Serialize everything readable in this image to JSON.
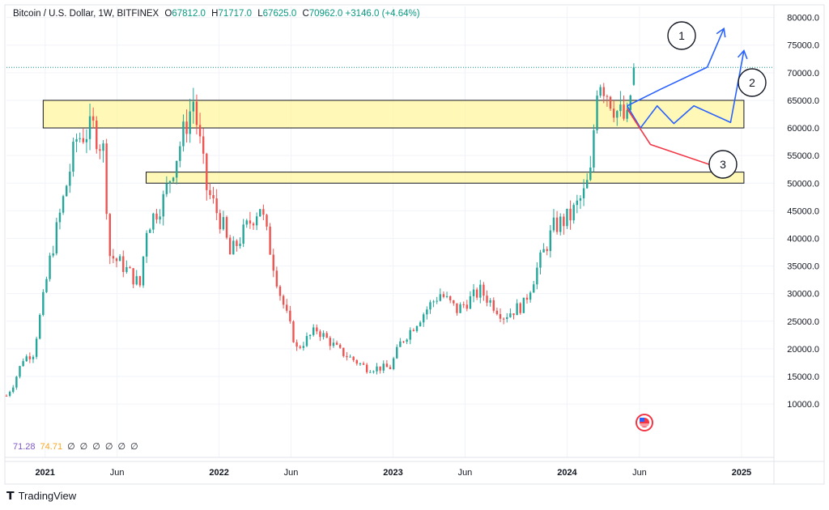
{
  "header": {
    "symbol": "Bitcoin / U.S. Dollar, 1W, BITFINEX",
    "open_label": "O",
    "open": "67812.0",
    "high_label": "H",
    "high": "71717.0",
    "low_label": "L",
    "low": "67625.0",
    "close_label": "C",
    "close": "70962.0",
    "change": "+3146.0 (+4.64%)"
  },
  "indicators": {
    "values": [
      "71.28",
      "74.71",
      "∅",
      "∅",
      "∅",
      "∅",
      "∅",
      "∅"
    ],
    "colors": [
      "#7e57c2",
      "#f9a825",
      "#131722",
      "#131722",
      "#131722",
      "#131722",
      "#131722",
      "#131722"
    ]
  },
  "branding": {
    "name": "TradingView",
    "logo_icon": "tradingview-logo-icon"
  },
  "colors": {
    "up": "#26a69a",
    "down": "#ef5350",
    "zone_fill": "#fff59d",
    "projection_blue": "#2962ff",
    "projection_red": "#f23645",
    "grid": "#f0f3fa"
  },
  "chart_data": {
    "type": "candlestick",
    "title": "Bitcoin / U.S. Dollar, 1W, BITFINEX",
    "xlabel": "",
    "ylabel": "",
    "x_range": [
      "2020-10-12",
      "2025-03-10"
    ],
    "ylim": [
      4000,
      82000
    ],
    "y_scale": "linear",
    "y_ticks": [
      "10000.0",
      "15000.0",
      "20000.0",
      "25000.0",
      "30000.0",
      "35000.0",
      "40000.0",
      "45000.0",
      "50000.0",
      "55000.0",
      "60000.0",
      "65000.0",
      "70000.0",
      "75000.0",
      "80000.0"
    ],
    "x_ticks": [
      {
        "date": "2021-01-01",
        "label": "2021",
        "major": true
      },
      {
        "date": "2021-06-01",
        "label": "Jun",
        "major": false
      },
      {
        "date": "2022-01-01",
        "label": "2022",
        "major": true
      },
      {
        "date": "2022-06-01",
        "label": "Jun",
        "major": false
      },
      {
        "date": "2023-01-01",
        "label": "2023",
        "major": true
      },
      {
        "date": "2023-06-01",
        "label": "Jun",
        "major": false
      },
      {
        "date": "2024-01-01",
        "label": "2024",
        "major": true
      },
      {
        "date": "2024-06-01",
        "label": "Jun",
        "major": false
      },
      {
        "date": "2025-01-01",
        "label": "2025",
        "major": true
      }
    ],
    "grid": true,
    "price_line": 70962,
    "series": [
      {
        "close_path": [
          [
            "2020-10-12",
            11500
          ],
          [
            "2020-10-26",
            13500
          ],
          [
            "2020-11-16",
            18200
          ],
          [
            "2020-12-07",
            19200
          ],
          [
            "2020-12-28",
            29000
          ],
          [
            "2021-01-11",
            36000
          ],
          [
            "2021-02-08",
            47000
          ],
          [
            "2021-03-08",
            58000
          ],
          [
            "2021-04-12",
            60000
          ],
          [
            "2021-05-03",
            56000
          ],
          [
            "2021-05-17",
            37000
          ],
          [
            "2021-06-14",
            35000
          ],
          [
            "2021-07-19",
            31500
          ],
          [
            "2021-08-02",
            42000
          ],
          [
            "2021-09-06",
            47000
          ],
          [
            "2021-10-04",
            55000
          ],
          [
            "2021-11-08",
            65000
          ],
          [
            "2021-12-06",
            49000
          ],
          [
            "2022-01-10",
            42000
          ],
          [
            "2022-01-24",
            37000
          ],
          [
            "2022-03-28",
            46000
          ],
          [
            "2022-05-09",
            30000
          ],
          [
            "2022-06-13",
            20000
          ],
          [
            "2022-07-25",
            23500
          ],
          [
            "2022-09-12",
            19500
          ],
          [
            "2022-11-07",
            16500
          ],
          [
            "2022-12-26",
            16600
          ],
          [
            "2023-01-16",
            21000
          ],
          [
            "2023-03-20",
            28000
          ],
          [
            "2023-04-10",
            30000
          ],
          [
            "2023-05-15",
            27000
          ],
          [
            "2023-07-03",
            30500
          ],
          [
            "2023-08-21",
            26000
          ],
          [
            "2023-10-02",
            28000
          ],
          [
            "2023-10-30",
            34500
          ],
          [
            "2023-12-04",
            42000
          ],
          [
            "2024-01-08",
            44000
          ],
          [
            "2024-02-05",
            48000
          ],
          [
            "2024-02-19",
            51500
          ],
          [
            "2024-03-04",
            68000
          ],
          [
            "2024-03-11",
            69000
          ],
          [
            "2024-04-15",
            63000
          ],
          [
            "2024-05-06",
            61000
          ],
          [
            "2024-05-20",
            70962
          ]
        ]
      }
    ],
    "zones": [
      {
        "from": "2020-12-28",
        "to": "2025-01-06",
        "low": 60000,
        "high": 65000
      },
      {
        "from": "2021-08-01",
        "to": "2025-01-06",
        "low": 50000,
        "high": 52000
      }
    ],
    "scenarios": [
      {
        "label": "1",
        "color": "#2962ff",
        "points": [
          [
            "2024-05-06",
            64000
          ],
          [
            "2024-07-15",
            67000
          ],
          [
            "2024-10-21",
            71000
          ],
          [
            "2024-11-25",
            78000
          ]
        ]
      },
      {
        "label": "2",
        "color": "#2962ff",
        "points": [
          [
            "2024-05-06",
            64000
          ],
          [
            "2024-06-03",
            60000
          ],
          [
            "2024-07-08",
            64000
          ],
          [
            "2024-08-12",
            60800
          ],
          [
            "2024-09-23",
            64000
          ],
          [
            "2024-12-09",
            61000
          ],
          [
            "2025-01-06",
            74000
          ]
        ]
      },
      {
        "label": "3",
        "color": "#f23645",
        "points": [
          [
            "2024-05-06",
            63500
          ],
          [
            "2024-06-24",
            57000
          ],
          [
            "2024-11-25",
            52500
          ]
        ]
      }
    ]
  }
}
